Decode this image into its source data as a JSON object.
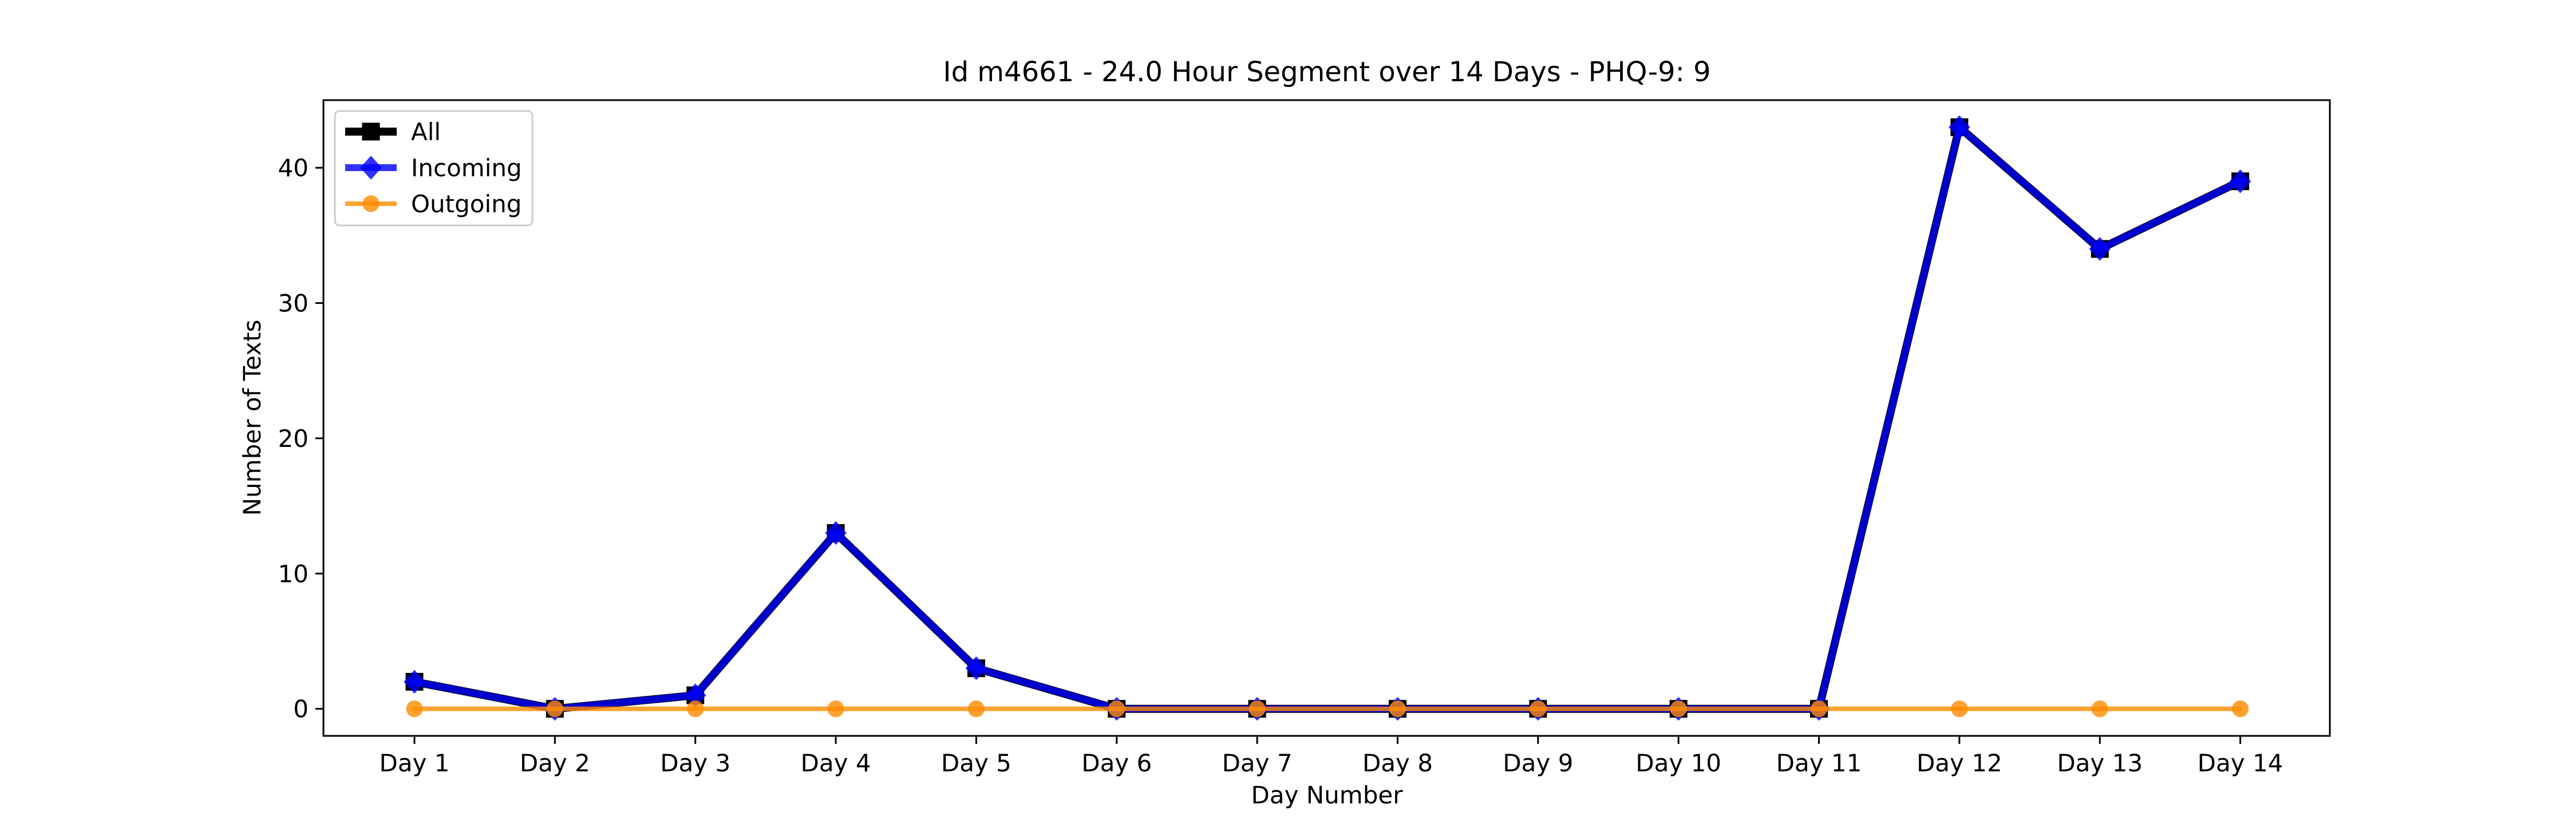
{
  "chart_data": {
    "type": "line",
    "title": "Id m4661 - 24.0 Hour Segment over 14 Days - PHQ-9: 9",
    "xlabel": "Day Number",
    "ylabel": "Number of Texts",
    "categories": [
      "Day 1",
      "Day 2",
      "Day 3",
      "Day 4",
      "Day 5",
      "Day 6",
      "Day 7",
      "Day 8",
      "Day 9",
      "Day 10",
      "Day 11",
      "Day 12",
      "Day 13",
      "Day 14"
    ],
    "ylim": [
      -2,
      45
    ],
    "yticks": [
      0,
      10,
      20,
      30,
      40
    ],
    "grid": false,
    "legend_position": "top-left",
    "series": [
      {
        "name": "All",
        "values": [
          2,
          0,
          1,
          13,
          3,
          0,
          0,
          0,
          0,
          0,
          0,
          43,
          34,
          39
        ],
        "color": "#000000",
        "marker": "square"
      },
      {
        "name": "Incoming",
        "values": [
          2,
          0,
          1,
          13,
          3,
          0,
          0,
          0,
          0,
          0,
          0,
          43,
          34,
          39
        ],
        "color": "#0000ff",
        "marker": "diamond"
      },
      {
        "name": "Outgoing",
        "values": [
          0,
          0,
          0,
          0,
          0,
          0,
          0,
          0,
          0,
          0,
          0,
          0,
          0,
          0
        ],
        "color": "#ff8c00",
        "marker": "circle"
      }
    ]
  }
}
